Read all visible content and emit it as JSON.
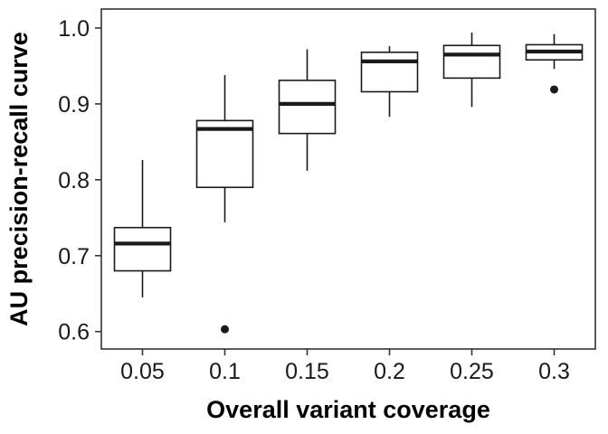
{
  "chart_data": {
    "type": "boxplot",
    "title": "",
    "xlabel": "Overall variant coverage",
    "ylabel": "AU precision-recall curve",
    "categories": [
      "0.05",
      "0.1",
      "0.15",
      "0.2",
      "0.25",
      "0.3"
    ],
    "y_ticks": [
      "0.6",
      "0.7",
      "0.8",
      "0.9",
      "1.0"
    ],
    "ylim": [
      0.577,
      1.025
    ],
    "grid": false,
    "legend": false,
    "series": [
      {
        "category": "0.05",
        "low": 0.645,
        "q1": 0.68,
        "median": 0.716,
        "q3": 0.737,
        "high": 0.826,
        "outliers": []
      },
      {
        "category": "0.1",
        "low": 0.744,
        "q1": 0.79,
        "median": 0.867,
        "q3": 0.878,
        "high": 0.938,
        "outliers": [
          0.603
        ]
      },
      {
        "category": "0.15",
        "low": 0.812,
        "q1": 0.861,
        "median": 0.9,
        "q3": 0.931,
        "high": 0.972,
        "outliers": []
      },
      {
        "category": "0.2",
        "low": 0.883,
        "q1": 0.916,
        "median": 0.956,
        "q3": 0.968,
        "high": 0.976,
        "outliers": []
      },
      {
        "category": "0.25",
        "low": 0.896,
        "q1": 0.934,
        "median": 0.965,
        "q3": 0.977,
        "high": 0.994,
        "outliers": []
      },
      {
        "category": "0.3",
        "low": 0.946,
        "q1": 0.958,
        "median": 0.969,
        "q3": 0.978,
        "high": 0.992,
        "outliers": [
          0.919
        ]
      }
    ],
    "colors": {
      "stroke": "#1a1a1a",
      "box_fill": "#ffffff",
      "panel_border": "#333333",
      "background": "#ffffff",
      "outlier": "#1a1a1a"
    }
  }
}
